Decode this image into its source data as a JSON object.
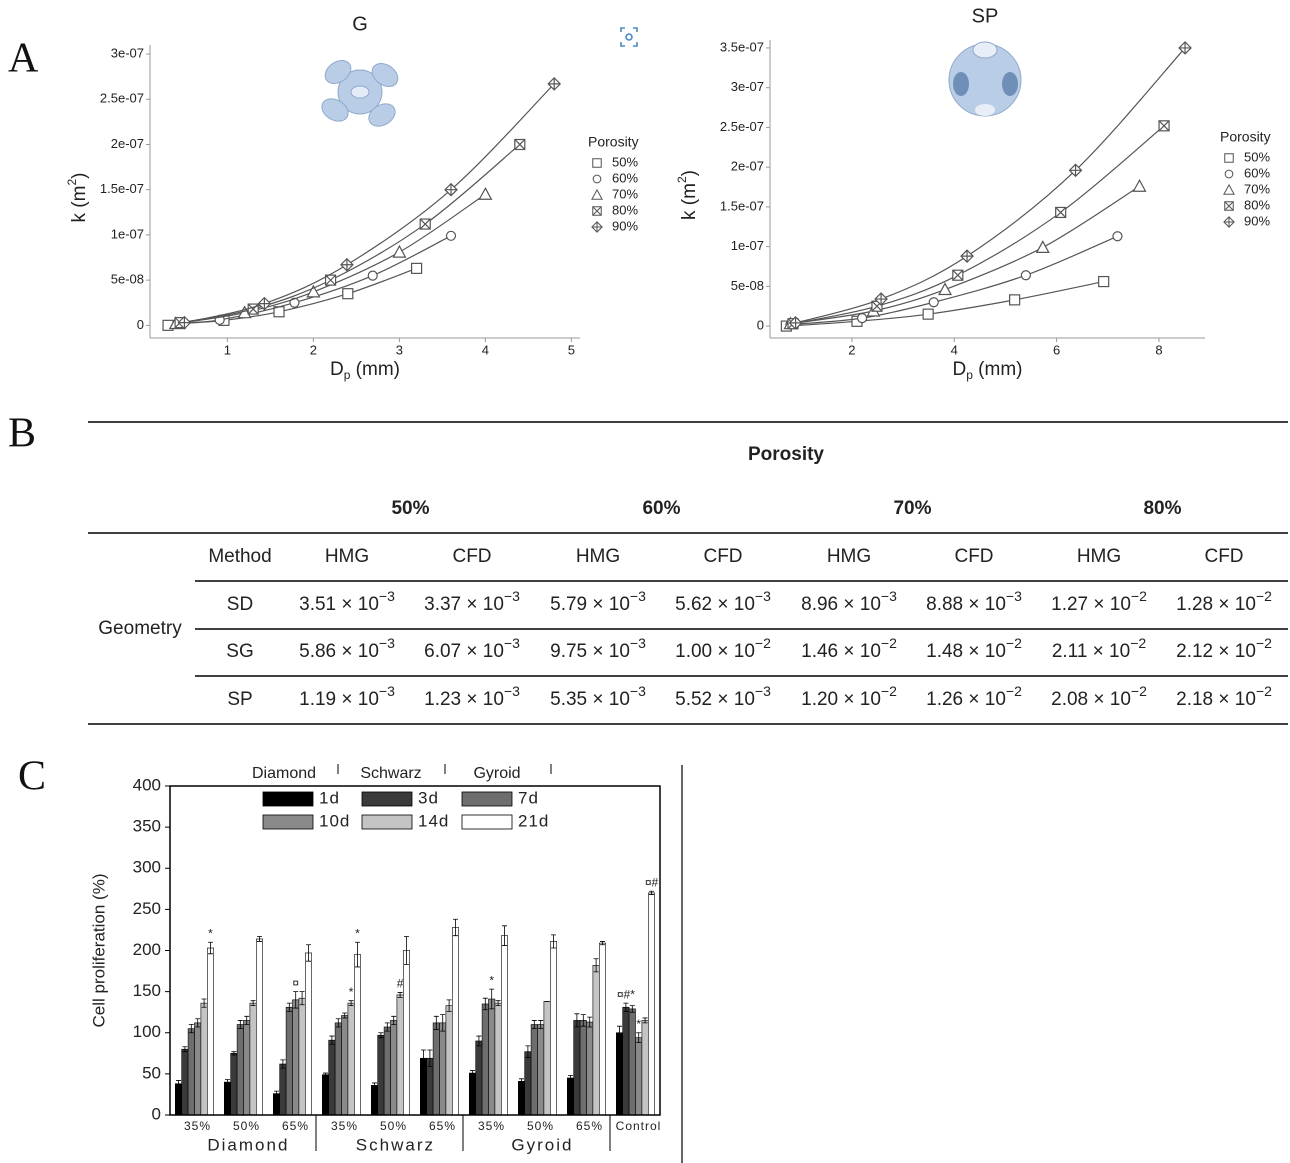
{
  "panel_labels": [
    "A",
    "B",
    "C"
  ],
  "chart_data": [
    {
      "type": "scatter",
      "title": "G",
      "xlabel": [
        "D",
        "p",
        " (mm)"
      ],
      "ylabel": [
        "k (m",
        "2",
        ")"
      ],
      "xlim": [
        0.1,
        5.1
      ],
      "ylim": [
        -1.4e-08,
        3.1e-07
      ],
      "grid": false,
      "xticks": [
        1,
        2,
        3,
        4,
        5
      ],
      "yticks": [
        0,
        {
          "value": 5e-08,
          "label": "5e-08"
        },
        {
          "value": 1e-07,
          "label": "1e-07"
        },
        {
          "value": 1.5e-07,
          "label": "1.5e-07"
        },
        {
          "value": 2e-07,
          "label": "2e-07"
        },
        {
          "value": 2.5e-07,
          "label": "2.5e-07"
        },
        {
          "value": 3e-07,
          "label": "3e-07"
        }
      ],
      "legend_title": "Porosity",
      "color": "#555555",
      "series": [
        {
          "name": "50%",
          "marker": "square",
          "x": [
            0.31,
            0.45,
            0.96,
            1.6,
            2.4,
            3.2
          ],
          "values": [
            0,
            2e-09,
            5.5e-09,
            1.5e-08,
            3.5e-08,
            6.3e-08
          ]
        },
        {
          "name": "60%",
          "marker": "circle",
          "x": [
            0.45,
            0.91,
            1.78,
            2.69,
            3.6
          ],
          "values": [
            3e-09,
            6e-09,
            2.5e-08,
            5.5e-08,
            9.9e-08
          ]
        },
        {
          "name": "70%",
          "marker": "triangle",
          "x": [
            0.4,
            1.2,
            2.0,
            3.0,
            4.0
          ],
          "values": [
            2e-09,
            1.4e-08,
            3.7e-08,
            8.1e-08,
            1.45e-07
          ]
        },
        {
          "name": "80%",
          "marker": "boxed-x",
          "x": [
            0.45,
            1.3,
            2.2,
            3.3,
            4.4
          ],
          "values": [
            3e-09,
            1.8e-08,
            5e-08,
            1.12e-07,
            2e-07
          ]
        },
        {
          "name": "90%",
          "marker": "diamond-plus",
          "x": [
            0.5,
            1.43,
            2.39,
            3.6,
            4.8
          ],
          "values": [
            3e-09,
            2.4e-08,
            6.7e-08,
            1.5e-07,
            2.67e-07
          ]
        }
      ]
    },
    {
      "type": "scatter",
      "title": "SP",
      "xlabel": [
        "D",
        "p",
        " (mm)"
      ],
      "ylabel": [
        "k (m",
        "2",
        ")"
      ],
      "xlim": [
        0.4,
        8.9
      ],
      "ylim": [
        -1.5e-08,
        3.6e-07
      ],
      "grid": false,
      "xticks": [
        2,
        4,
        6,
        8
      ],
      "yticks": [
        0,
        {
          "value": 5e-08,
          "label": "5e-08"
        },
        {
          "value": 1e-07,
          "label": "1e-07"
        },
        {
          "value": 1.5e-07,
          "label": "1.5e-07"
        },
        {
          "value": 2e-07,
          "label": "2e-07"
        },
        {
          "value": 2.5e-07,
          "label": "2.5e-07"
        },
        {
          "value": 3e-07,
          "label": "3e-07"
        },
        {
          "value": 3.5e-07,
          "label": "3.5e-07"
        }
      ],
      "legend_title": "Porosity",
      "color": "#555555",
      "series": [
        {
          "name": "50%",
          "marker": "square",
          "x": [
            0.72,
            2.1,
            3.49,
            5.18,
            6.92
          ],
          "values": [
            0,
            6e-09,
            1.5e-08,
            3.3e-08,
            5.6e-08
          ]
        },
        {
          "name": "60%",
          "marker": "circle",
          "x": [
            0.8,
            2.2,
            3.6,
            5.4,
            7.19
          ],
          "values": [
            2e-09,
            1e-08,
            3e-08,
            6.4e-08,
            1.13e-07
          ]
        },
        {
          "name": "70%",
          "marker": "triangle",
          "x": [
            0.8,
            2.42,
            3.82,
            5.73,
            7.62
          ],
          "values": [
            3e-09,
            1.9e-08,
            4.6e-08,
            9.9e-08,
            1.76e-07
          ]
        },
        {
          "name": "80%",
          "marker": "boxed-x",
          "x": [
            0.85,
            2.49,
            4.07,
            6.08,
            8.1
          ],
          "values": [
            3e-09,
            2.5e-08,
            6.4e-08,
            1.43e-07,
            2.52e-07
          ]
        },
        {
          "name": "90%",
          "marker": "diamond-plus",
          "x": [
            0.9,
            2.57,
            4.25,
            6.37,
            8.51
          ],
          "values": [
            4e-09,
            3.4e-08,
            8.8e-08,
            1.96e-07,
            3.5e-07
          ]
        }
      ]
    },
    {
      "type": "bar",
      "ylabel": "Cell proliferation (%)",
      "categories": [
        "35%",
        "50%",
        "65%",
        "35%",
        "50%",
        "65%",
        "35%",
        "50%",
        "65%",
        "Control"
      ],
      "groups": [
        "Diamond",
        "Schwarz",
        "Gyroid"
      ],
      "header_labels": [
        "Diamond",
        "Schwarz",
        "Gyroid"
      ],
      "ylim": [
        0,
        400
      ],
      "yticks": [
        0,
        50,
        100,
        150,
        200,
        250,
        300,
        350,
        400
      ],
      "grid": false,
      "series": [
        {
          "name": "1d",
          "color": "#000000",
          "values": [
            38,
            40,
            26,
            49,
            36,
            69,
            51,
            41,
            45,
            100
          ],
          "errors": [
            4,
            3,
            3,
            2,
            3,
            10,
            3,
            3,
            3,
            8
          ]
        },
        {
          "name": "3d",
          "color": "#3a3a3a",
          "values": [
            80,
            75,
            62,
            91,
            97,
            69,
            90,
            77,
            115,
            131
          ],
          "errors": [
            3,
            2,
            5,
            5,
            3,
            10,
            6,
            7,
            8,
            5
          ]
        },
        {
          "name": "7d",
          "color": "#6e6e6e",
          "values": [
            105,
            110,
            131,
            112,
            107,
            112,
            135,
            110,
            115,
            129
          ],
          "errors": [
            5,
            5,
            5,
            5,
            5,
            8,
            7,
            5,
            7,
            4
          ]
        },
        {
          "name": "10d",
          "color": "#8a8a8a",
          "values": [
            112,
            115,
            140,
            121,
            115,
            112,
            141,
            110,
            113,
            94
          ],
          "errors": [
            5,
            5,
            10,
            3,
            5,
            10,
            12,
            5,
            6,
            6
          ]
        },
        {
          "name": "14d",
          "color": "#c4c4c4",
          "values": [
            136,
            136,
            142,
            136,
            146,
            133,
            136,
            138,
            182,
            115
          ],
          "errors": [
            5,
            3,
            8,
            3,
            3,
            7,
            3,
            0,
            8,
            3
          ]
        },
        {
          "name": "21d",
          "color": "#ffffff",
          "values": [
            203,
            214,
            197,
            195,
            200,
            228,
            218,
            211,
            209,
            270
          ],
          "errors": [
            7,
            3,
            10,
            15,
            17,
            10,
            12,
            8,
            2,
            2
          ]
        }
      ],
      "annotations": [
        {
          "text": "*",
          "category": 0,
          "series": 5
        },
        {
          "text": "¤",
          "category": 2,
          "series": 3
        },
        {
          "text": "*",
          "category": 3,
          "series": 5
        },
        {
          "text": "*",
          "category": 3,
          "series": 4
        },
        {
          "text": "#",
          "category": 4,
          "series": 4
        },
        {
          "text": "*",
          "category": 6,
          "series": 3
        },
        {
          "text": "¤#*",
          "category": 9,
          "series": 1
        },
        {
          "text": "*",
          "category": 9,
          "series": 3
        },
        {
          "text": "¤#",
          "category": 9,
          "series": 5
        }
      ]
    }
  ],
  "table": {
    "title": "Porosity",
    "porosities": [
      "50%",
      "60%",
      "70%",
      "80%"
    ],
    "method_label": "Method",
    "methods": [
      "HMG",
      "CFD"
    ],
    "row_group_label": "Geometry",
    "rows": [
      {
        "geometry": "SD",
        "cells": [
          {
            "base": "3.51 × 10",
            "exponent": "−3"
          },
          {
            "base": "3.37 × 10",
            "exponent": "−3"
          },
          {
            "base": "5.79 × 10",
            "exponent": "−3"
          },
          {
            "base": "5.62 × 10",
            "exponent": "−3"
          },
          {
            "base": "8.96 × 10",
            "exponent": "−3"
          },
          {
            "base": "8.88 × 10",
            "exponent": "−3"
          },
          {
            "base": "1.27 × 10",
            "exponent": "−2"
          },
          {
            "base": "1.28 × 10",
            "exponent": "−2"
          }
        ]
      },
      {
        "geometry": "SG",
        "cells": [
          {
            "base": "5.86 × 10",
            "exponent": "−3"
          },
          {
            "base": "6.07 × 10",
            "exponent": "−3"
          },
          {
            "base": "9.75 × 10",
            "exponent": "−3"
          },
          {
            "base": "1.00 × 10",
            "exponent": "−2"
          },
          {
            "base": "1.46 × 10",
            "exponent": "−2"
          },
          {
            "base": "1.48 × 10",
            "exponent": "−2"
          },
          {
            "base": "2.11 × 10",
            "exponent": "−2"
          },
          {
            "base": "2.12 × 10",
            "exponent": "−2"
          }
        ]
      },
      {
        "geometry": "SP",
        "cells": [
          {
            "base": "1.19 × 10",
            "exponent": "−3"
          },
          {
            "base": "1.23 × 10",
            "exponent": "−3"
          },
          {
            "base": "5.35 × 10",
            "exponent": "−3"
          },
          {
            "base": "5.52 × 10",
            "exponent": "−3"
          },
          {
            "base": "1.20 × 10",
            "exponent": "−2"
          },
          {
            "base": "1.26 × 10",
            "exponent": "−2"
          },
          {
            "base": "2.08 × 10",
            "exponent": "−2"
          },
          {
            "base": "2.18 × 10",
            "exponent": "−2"
          }
        ]
      }
    ]
  }
}
